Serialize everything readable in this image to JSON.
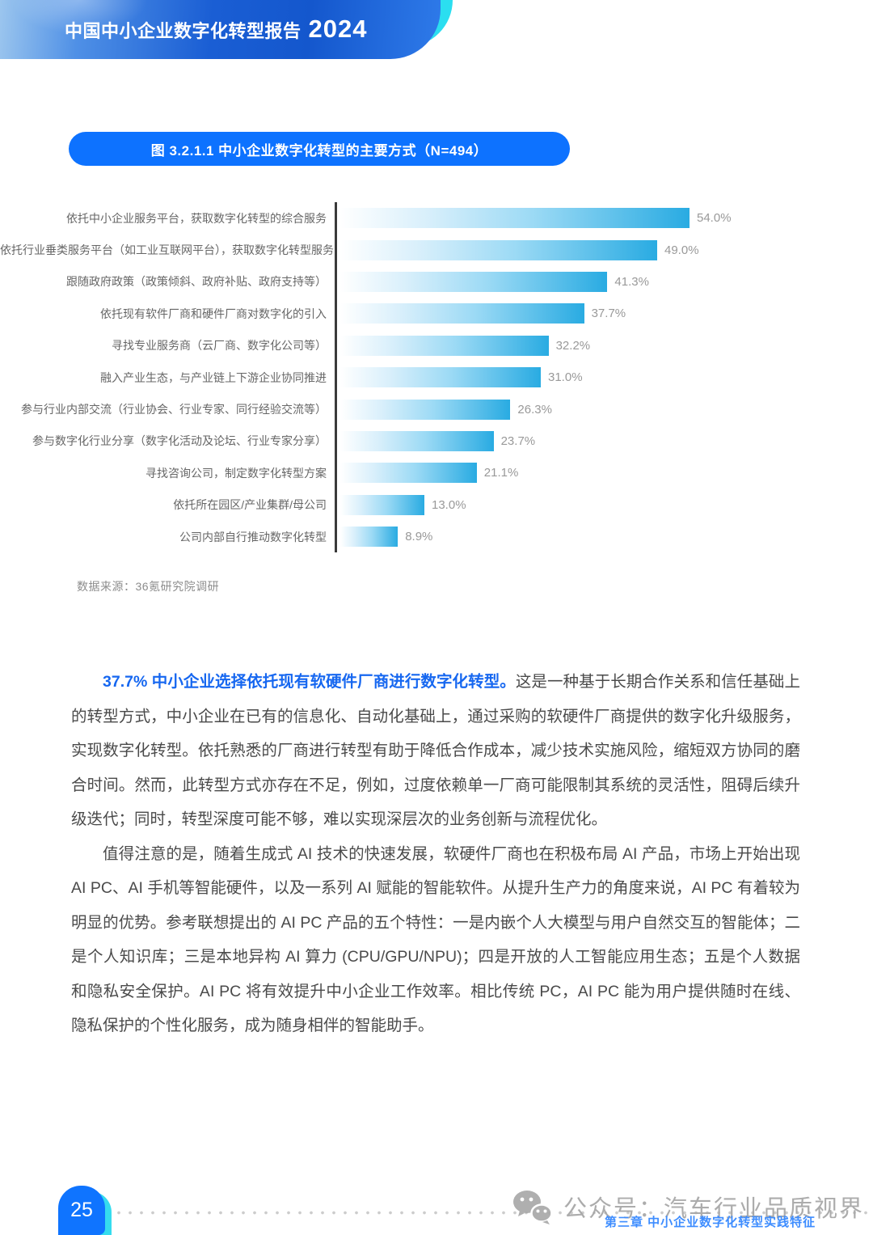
{
  "header": {
    "title": "中国中小企业数字化转型报告",
    "year": "2024"
  },
  "figure": {
    "title": "图 3.2.1.1 中小企业数字化转型的主要方式（N=494）",
    "source": "数据来源：36氪研究院调研"
  },
  "chart_data": {
    "type": "bar",
    "orientation": "horizontal",
    "title": "图 3.2.1.1 中小企业数字化转型的主要方式（N=494）",
    "categories": [
      "依托中小企业服务平台，获取数字化转型的综合服务",
      "依托行业垂类服务平台（如工业互联网平台），获取数字化转型服务",
      "跟随政府政策（政策倾斜、政府补贴、政府支持等）",
      "依托现有软件厂商和硬件厂商对数字化的引入",
      "寻找专业服务商（云厂商、数字化公司等）",
      "融入产业生态，与产业链上下游企业协同推进",
      "参与行业内部交流（行业协会、行业专家、同行经验交流等）",
      "参与数字化行业分享（数字化活动及论坛、行业专家分享）",
      "寻找咨询公司，制定数字化转型方案",
      "依托所在园区/产业集群/母公司",
      "公司内部自行推动数字化转型"
    ],
    "values": [
      54.0,
      49.0,
      41.3,
      37.7,
      32.2,
      31.0,
      26.3,
      23.7,
      21.1,
      13.0,
      8.9
    ],
    "value_labels": [
      "54.0%",
      "49.0%",
      "41.3%",
      "37.7%",
      "32.2%",
      "31.0%",
      "26.3%",
      "23.7%",
      "21.1%",
      "13.0%",
      "8.9%"
    ],
    "xlabel": "",
    "ylabel": "",
    "xlim": [
      0,
      60
    ],
    "grid": false,
    "legend": false,
    "bar_gradient": [
      "#FFFFFF",
      "#29ABE2"
    ],
    "value_label_color": "#999999",
    "sample_size": "N=494"
  },
  "body": {
    "p1_lead": "37.7% 中小企业选择依托现有软硬件厂商进行数字化转型。",
    "p1_rest": "这是一种基于长期合作关系和信任基础上的转型方式，中小企业在已有的信息化、自动化基础上，通过采购的软硬件厂商提供的数字化升级服务，实现数字化转型。依托熟悉的厂商进行转型有助于降低合作成本，减少技术实施风险，缩短双方协同的磨合时间。然而，此转型方式亦存在不足，例如，过度依赖单一厂商可能限制其系统的灵活性，阻碍后续升级迭代；同时，转型深度可能不够，难以实现深层次的业务创新与流程优化。",
    "p2": "值得注意的是，随着生成式 AI 技术的快速发展，软硬件厂商也在积极布局 AI 产品，市场上开始出现 AI PC、AI 手机等智能硬件，以及一系列 AI 赋能的智能软件。从提升生产力的角度来说，AI PC 有着较为明显的优势。参考联想提出的 AI PC 产品的五个特性：一是内嵌个人大模型与用户自然交互的智能体；二是个人知识库；三是本地异构 AI 算力 (CPU/GPU/NPU)；四是开放的人工智能应用生态；五是个人数据和隐私安全保护。AI PC 将有效提升中小企业工作效率。相比传统 PC，AI PC 能为用户提供随时在线、隐私保护的个性化服务，成为随身相伴的智能助手。"
  },
  "footer": {
    "page_number": "25",
    "watermark": "公众号：汽车行业品质视界",
    "wechat_icon": "wechat-icon",
    "chapter": "第三章 中小企业数字化转型实践特征"
  },
  "colors": {
    "banner_blue": "#1558CF",
    "banner_cyan": "#2BDEF0",
    "pill_blue": "#0D72FF",
    "bar_blue": "#29ABE2",
    "lead_blue": "#1667F0",
    "chapter_blue": "#3E8DFF",
    "badge_blue": "#0F74FF",
    "badge_cyan": "#35DCEE"
  }
}
